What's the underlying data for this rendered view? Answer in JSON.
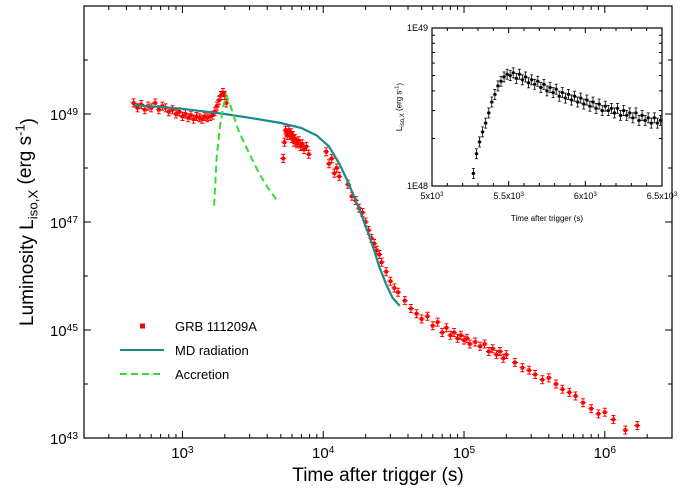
{
  "colors": {
    "grb": "#ff0000",
    "md": "#1a8a8a",
    "accretion": "#33dd33",
    "inset_points": "#000000"
  },
  "chart_data": [
    {
      "type": "scatter",
      "xscale": "log",
      "yscale": "log",
      "xlim": [
        200,
        3000000
      ],
      "ylim": [
        1e+43,
        1e+51
      ],
      "xlabel": "Time after trigger (s)",
      "ylabel_main": "Luminosity L",
      "ylabel_sub": "iso,X",
      "ylabel_unit": "(erg s",
      "ylabel_exp": "-1",
      "ylabel_end": ")",
      "x_ticks": [
        {
          "value": 1000,
          "base": "10",
          "exp": "3"
        },
        {
          "value": 10000,
          "base": "10",
          "exp": "4"
        },
        {
          "value": 100000,
          "base": "10",
          "exp": "5"
        },
        {
          "value": 1000000,
          "base": "10",
          "exp": "6"
        }
      ],
      "y_ticks": [
        {
          "value": 1e+43,
          "base": "10",
          "exp": "43"
        },
        {
          "value": 1e+45,
          "base": "10",
          "exp": "45"
        },
        {
          "value": 1e+47,
          "base": "10",
          "exp": "47"
        },
        {
          "value": 1e+49,
          "base": "10",
          "exp": "49"
        }
      ],
      "legend": {
        "placement": "bottom-left",
        "entries": [
          {
            "label": "GRB 111209A",
            "style": "marker"
          },
          {
            "label": "MD radiation",
            "style": "solid"
          },
          {
            "label": "Accretion",
            "style": "dashed"
          }
        ]
      },
      "series": [
        {
          "key": "grb",
          "name": "GRB 111209A",
          "style": "marker",
          "points": [
            [
              450,
              1.6e+49
            ],
            [
              480,
              1.3e+49
            ],
            [
              510,
              1.5e+49
            ],
            [
              540,
              1.2e+49
            ],
            [
              570,
              1.4e+49
            ],
            [
              600,
              1.3e+49
            ],
            [
              640,
              1.6e+49
            ],
            [
              680,
              1.2e+49
            ],
            [
              720,
              1.4e+49
            ],
            [
              760,
              1.3e+49
            ],
            [
              800,
              1.1e+49
            ],
            [
              850,
              1.2e+49
            ],
            [
              900,
              1e+49
            ],
            [
              950,
              1.1e+49
            ],
            [
              1000,
              9e+48
            ],
            [
              1050,
              1e+49
            ],
            [
              1100,
              8.5e+48
            ],
            [
              1150,
              9.5e+48
            ],
            [
              1200,
              8e+48
            ],
            [
              1260,
              9e+48
            ],
            [
              1320,
              8.5e+48
            ],
            [
              1380,
              8e+48
            ],
            [
              1440,
              9e+48
            ],
            [
              1500,
              8.5e+48
            ],
            [
              1570,
              9e+48
            ],
            [
              1640,
              9.5e+48
            ],
            [
              1700,
              1.1e+49
            ],
            [
              1760,
              1.4e+49
            ],
            [
              1820,
              1.8e+49
            ],
            [
              1880,
              2.2e+49
            ],
            [
              1940,
              2.5e+49
            ],
            [
              2000,
              2.2e+49
            ],
            [
              2050,
              1.6e+49
            ],
            [
              5200,
              1.5e+48
            ],
            [
              5300,
              3e+48
            ],
            [
              5400,
              5e+48
            ],
            [
              5500,
              4.5e+48
            ],
            [
              5600,
              4e+48
            ],
            [
              5700,
              5e+48
            ],
            [
              5800,
              4e+48
            ],
            [
              5900,
              4.5e+48
            ],
            [
              6000,
              3.5e+48
            ],
            [
              6100,
              4e+48
            ],
            [
              6200,
              3e+48
            ],
            [
              6300,
              3.5e+48
            ],
            [
              6400,
              3e+48
            ],
            [
              6500,
              2.8e+48
            ],
            [
              6700,
              3.2e+48
            ],
            [
              6900,
              2.5e+48
            ],
            [
              7100,
              2.8e+48
            ],
            [
              7300,
              2.2e+48
            ],
            [
              7600,
              2.5e+48
            ],
            [
              7900,
              1.8e+48
            ],
            [
              10500,
              2e+48
            ],
            [
              11000,
              1.2e+48
            ],
            [
              11500,
              1.5e+48
            ],
            [
              12000,
              8e+47
            ],
            [
              12500,
              1e+48
            ],
            [
              13000,
              7e+47
            ],
            [
              15000,
              5e+47
            ],
            [
              16000,
              3e+47
            ],
            [
              17000,
              2.5e+47
            ],
            [
              18000,
              1.8e+47
            ],
            [
              19000,
              1.5e+47
            ],
            [
              20000,
              1e+47
            ],
            [
              21000,
              7e+46
            ],
            [
              22000,
              5e+46
            ],
            [
              23000,
              4e+46
            ],
            [
              24000,
              3e+46
            ],
            [
              25000,
              2.5e+46
            ],
            [
              26000,
              1.8e+46
            ],
            [
              28000,
              1.2e+46
            ],
            [
              30000,
              8e+45
            ],
            [
              32000,
              6e+45
            ],
            [
              34000,
              5e+45
            ],
            [
              38000,
              3.5e+45
            ],
            [
              42000,
              2.5e+45
            ],
            [
              46000,
              2e+45
            ],
            [
              50000,
              1.6e+45
            ],
            [
              55000,
              1.8e+45
            ],
            [
              60000,
              1.2e+45
            ],
            [
              65000,
              1.4e+45
            ],
            [
              70000,
              9e+44
            ],
            [
              75000,
              1.1e+45
            ],
            [
              80000,
              8e+44
            ],
            [
              85000,
              9e+44
            ],
            [
              90000,
              7e+44
            ],
            [
              95000,
              8e+44
            ],
            [
              100000,
              6.5e+44
            ],
            [
              105000,
              7e+44
            ],
            [
              110000,
              5.5e+44
            ],
            [
              120000,
              6e+44
            ],
            [
              130000,
              5e+44
            ],
            [
              140000,
              5.5e+44
            ],
            [
              150000,
              4e+44
            ],
            [
              160000,
              4.5e+44
            ],
            [
              170000,
              3.5e+44
            ],
            [
              180000,
              4e+44
            ],
            [
              190000,
              3e+44
            ],
            [
              200000,
              3.5e+44
            ],
            [
              230000,
              2.5e+44
            ],
            [
              260000,
              2e+44
            ],
            [
              290000,
              1.8e+44
            ],
            [
              320000,
              1.5e+44
            ],
            [
              360000,
              1.2e+44
            ],
            [
              400000,
              1.3e+44
            ],
            [
              450000,
              1e+44
            ],
            [
              500000,
              8e+43
            ],
            [
              560000,
              7e+43
            ],
            [
              620000,
              6e+43
            ],
            [
              700000,
              4.5e+43
            ],
            [
              800000,
              3.5e+43
            ],
            [
              900000,
              2.8e+43
            ],
            [
              1000000,
              3e+43
            ],
            [
              1150000,
              2.2e+43
            ],
            [
              1400000,
              1.4e+43
            ],
            [
              1700000,
              1.7e+43
            ]
          ]
        },
        {
          "key": "md",
          "name": "MD radiation",
          "style": "solid",
          "points": [
            [
              450,
              1.45e+49
            ],
            [
              700,
              1.35e+49
            ],
            [
              1000,
              1.25e+49
            ],
            [
              1500,
              1.1e+49
            ],
            [
              2000,
              1e+49
            ],
            [
              3000,
              8.5e+48
            ],
            [
              5000,
              6.8e+48
            ],
            [
              7000,
              5.5e+48
            ],
            [
              9000,
              4e+48
            ],
            [
              11000,
              2.5e+48
            ],
            [
              13000,
              1.2e+48
            ],
            [
              15000,
              5.5e+47
            ],
            [
              17000,
              2.5e+47
            ],
            [
              19000,
              1.2e+47
            ],
            [
              21000,
              6e+46
            ],
            [
              23000,
              3e+46
            ],
            [
              25000,
              1.5e+46
            ],
            [
              28000,
              7e+45
            ],
            [
              31000,
              4e+45
            ],
            [
              35000,
              2.8e+45
            ]
          ]
        },
        {
          "key": "accretion",
          "name": "Accretion",
          "style": "dashed",
          "points": [
            [
              1680,
              2e+47
            ],
            [
              1750,
              1.5e+48
            ],
            [
              1850,
              6e+48
            ],
            [
              1950,
              1.4e+49
            ],
            [
              2050,
              2.2e+49
            ],
            [
              2200,
              1.4e+49
            ],
            [
              2500,
              5e+48
            ],
            [
              3000,
              1.8e+48
            ],
            [
              3500,
              8e+47
            ],
            [
              4000,
              4.5e+47
            ],
            [
              4700,
              2.5e+47
            ]
          ]
        }
      ]
    },
    {
      "type": "scatter",
      "inset": true,
      "xscale": "linear",
      "yscale": "log",
      "xlim": [
        5000,
        6500
      ],
      "ylim": [
        1e+48,
        1e+49
      ],
      "xlabel": "Time after trigger (s)",
      "ylabel_main": "L",
      "ylabel_sub": "iso,X",
      "ylabel_unit": "(erg s",
      "ylabel_exp": "-1",
      "ylabel_end": ")",
      "x_ticks": [
        {
          "value": 5000,
          "base": "5x10",
          "exp": "3"
        },
        {
          "value": 5500,
          "base": "5.5x10",
          "exp": "3"
        },
        {
          "value": 6000,
          "base": "6x10",
          "exp": "3"
        },
        {
          "value": 6500,
          "base": "6.5x10",
          "exp": "3"
        }
      ],
      "y_ticks": [
        {
          "value": 1e+48,
          "label": "1E48"
        },
        {
          "value": 1e+49,
          "label": "1E49"
        }
      ],
      "series": [
        {
          "key": "inset_points",
          "style": "marker",
          "points": [
            [
              5270,
              1.2e+48
            ],
            [
              5290,
              1.6e+48
            ],
            [
              5310,
              1.9e+48
            ],
            [
              5330,
              2.2e+48
            ],
            [
              5350,
              2.5e+48
            ],
            [
              5370,
              2.9e+48
            ],
            [
              5390,
              3.4e+48
            ],
            [
              5410,
              3.8e+48
            ],
            [
              5430,
              4.3e+48
            ],
            [
              5450,
              4.6e+48
            ],
            [
              5470,
              4.9e+48
            ],
            [
              5490,
              5.1e+48
            ],
            [
              5510,
              5e+48
            ],
            [
              5530,
              5.2e+48
            ],
            [
              5550,
              4.8e+48
            ],
            [
              5570,
              5.1e+48
            ],
            [
              5590,
              4.7e+48
            ],
            [
              5610,
              4.9e+48
            ],
            [
              5630,
              4.5e+48
            ],
            [
              5650,
              4.7e+48
            ],
            [
              5670,
              4.4e+48
            ],
            [
              5690,
              4.6e+48
            ],
            [
              5710,
              4.2e+48
            ],
            [
              5730,
              4.4e+48
            ],
            [
              5750,
              4e+48
            ],
            [
              5770,
              4.2e+48
            ],
            [
              5790,
              3.9e+48
            ],
            [
              5810,
              4.1e+48
            ],
            [
              5830,
              3.7e+48
            ],
            [
              5850,
              3.9e+48
            ],
            [
              5870,
              3.6e+48
            ],
            [
              5890,
              3.8e+48
            ],
            [
              5910,
              3.5e+48
            ],
            [
              5930,
              3.7e+48
            ],
            [
              5950,
              3.4e+48
            ],
            [
              5970,
              3.6e+48
            ],
            [
              5990,
              3.3e+48
            ],
            [
              6010,
              3.5e+48
            ],
            [
              6030,
              3.2e+48
            ],
            [
              6050,
              3.4e+48
            ],
            [
              6070,
              3.1e+48
            ],
            [
              6090,
              3.3e+48
            ],
            [
              6110,
              3e+48
            ],
            [
              6130,
              3.2e+48
            ],
            [
              6150,
              3e+48
            ],
            [
              6170,
              3.1e+48
            ],
            [
              6190,
              2.9e+48
            ],
            [
              6210,
              3.1e+48
            ],
            [
              6230,
              2.8e+48
            ],
            [
              6250,
              3e+48
            ],
            [
              6270,
              2.8e+48
            ],
            [
              6290,
              2.9e+48
            ],
            [
              6310,
              2.7e+48
            ],
            [
              6330,
              2.9e+48
            ],
            [
              6350,
              2.6e+48
            ],
            [
              6370,
              2.8e+48
            ],
            [
              6390,
              2.6e+48
            ],
            [
              6410,
              2.7e+48
            ],
            [
              6430,
              2.5e+48
            ],
            [
              6450,
              2.7e+48
            ],
            [
              6470,
              2.5e+48
            ],
            [
              6490,
              2.6e+48
            ]
          ]
        }
      ]
    }
  ]
}
